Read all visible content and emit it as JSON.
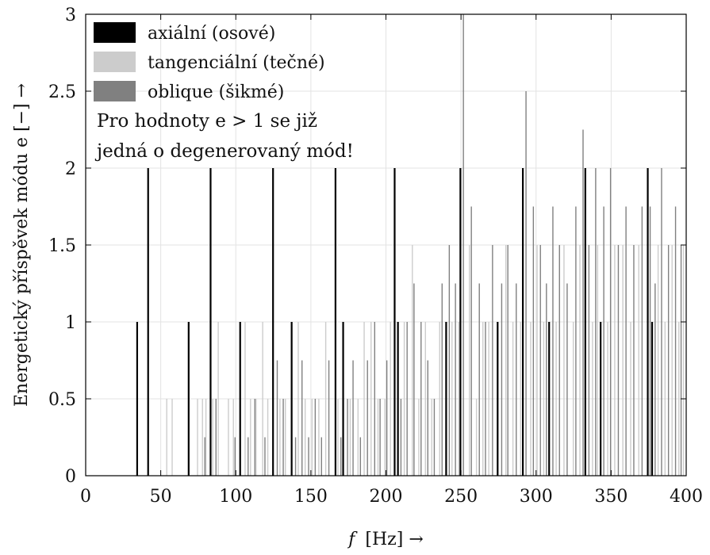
{
  "chart_data": {
    "type": "bar",
    "xlabel_var": "f",
    "xlabel_unit": "[Hz] →",
    "ylabel": "Energetický příspěvek módu e [−] →",
    "xlim": [
      0,
      400
    ],
    "ylim": [
      0,
      3
    ],
    "xticks": [
      "0",
      "50",
      "100",
      "150",
      "200",
      "250",
      "300",
      "350",
      "400"
    ],
    "yticks": [
      "0",
      "0.5",
      "1",
      "1.5",
      "2",
      "2.5",
      "3"
    ],
    "grid": true,
    "legend_position": "top-left",
    "note_lines": [
      "Pro hodnoty e > 1 se již",
      "jedná o degenerovaný mód!"
    ],
    "series": [
      {
        "name": "axiální (osové)",
        "color": "#000000",
        "x": [
          34.3,
          41.6,
          68.6,
          83.2,
          102.9,
          124.8,
          137.2,
          166.4,
          171.5,
          205.8,
          208.0,
          240.1,
          249.6,
          274.4,
          291.2,
          308.7,
          332.8,
          343.0,
          374.4,
          377.3
        ],
        "y": [
          1,
          2,
          1,
          2,
          1,
          2,
          1,
          2,
          1,
          2,
          1,
          1,
          2,
          1,
          2,
          1,
          2,
          1,
          2,
          1
        ]
      },
      {
        "name": "tangenciální (tečné)",
        "color": "#cccccc",
        "x": [
          54.0,
          57.6,
          74.5,
          77.8,
          80.1,
          84.6,
          88.3,
          95.1,
          98.4,
          106.2,
          109.8,
          113.5,
          117.9,
          121.3,
          129.4,
          133.0,
          141.6,
          146.2,
          150.8,
          155.3,
          159.9,
          168.0,
          176.2,
          181.4,
          185.5,
          190.1,
          194.7,
          199.3,
          203.0,
          212.2,
          217.6,
          221.9,
          226.3,
          230.5,
          235.8,
          244.0,
          248.5,
          255.6,
          260.3,
          264.6,
          268.5,
          279.9,
          284.6,
          289.7,
          296.4,
          300.7,
          305.1,
          313.4,
          318.6,
          324.8,
          329.2,
          337.6,
          341.0,
          347.7,
          352.4,
          357.8,
          363.0,
          368.4,
          381.3,
          385.9,
          390.6,
          395.1,
          398.2
        ],
        "y": [
          0.5,
          0.5,
          0.5,
          0.5,
          0.5,
          0.5,
          1,
          0.5,
          0.5,
          1,
          0.5,
          0.5,
          1,
          0.5,
          0.5,
          0.5,
          1,
          0.5,
          0.5,
          0.5,
          1,
          0.5,
          0.5,
          0.5,
          1,
          1,
          0.5,
          0.5,
          1,
          1,
          1.5,
          0.5,
          1,
          0.5,
          1,
          1,
          1,
          1.5,
          0.5,
          1,
          1,
          1.5,
          1,
          1,
          1,
          1.5,
          1,
          1,
          1.5,
          1,
          1.5,
          1,
          1.5,
          1,
          1.5,
          1.5,
          1,
          1.5,
          1.5,
          1,
          1.5,
          1,
          1.5
        ]
      },
      {
        "name": "oblique (šikmé)",
        "color": "#808080",
        "x": [
          79.4,
          86.8,
          99.5,
          108.2,
          112.7,
          119.4,
          127.6,
          131.6,
          139.8,
          144.1,
          148.5,
          152.9,
          157.1,
          162.0,
          170.0,
          174.4,
          178.1,
          183.0,
          187.7,
          192.5,
          196.1,
          200.6,
          210.0,
          214.1,
          218.7,
          223.4,
          227.9,
          232.2,
          237.4,
          242.2,
          246.3,
          251.6,
          256.9,
          262.2,
          266.3,
          271.0,
          277.1,
          281.2,
          286.8,
          293.3,
          298.2,
          302.9,
          306.9,
          311.2,
          315.6,
          320.7,
          326.5,
          331.3,
          335.2,
          339.7,
          345.1,
          349.6,
          354.8,
          359.9,
          365.1,
          370.6,
          376.0,
          379.3,
          383.6,
          388.2,
          392.9,
          396.6
        ],
        "y": [
          0.25,
          0.5,
          0.25,
          0.25,
          0.5,
          0.25,
          0.75,
          0.5,
          0.25,
          0.75,
          0.25,
          0.5,
          0.25,
          0.75,
          0.25,
          0.5,
          0.75,
          0.25,
          0.75,
          1,
          0.5,
          0.75,
          0.5,
          1,
          1.25,
          1,
          0.75,
          0.5,
          1.25,
          1.5,
          1.25,
          3,
          1.75,
          1.25,
          1,
          1.5,
          1.25,
          1.5,
          1.25,
          2.5,
          1.75,
          1.5,
          1.25,
          1.75,
          1.5,
          1.25,
          1.75,
          2.25,
          1.5,
          2,
          1.75,
          2,
          1.5,
          1.75,
          1.5,
          1.75,
          1.75,
          1.25,
          2,
          1.5,
          1.75,
          1.5
        ]
      }
    ]
  }
}
